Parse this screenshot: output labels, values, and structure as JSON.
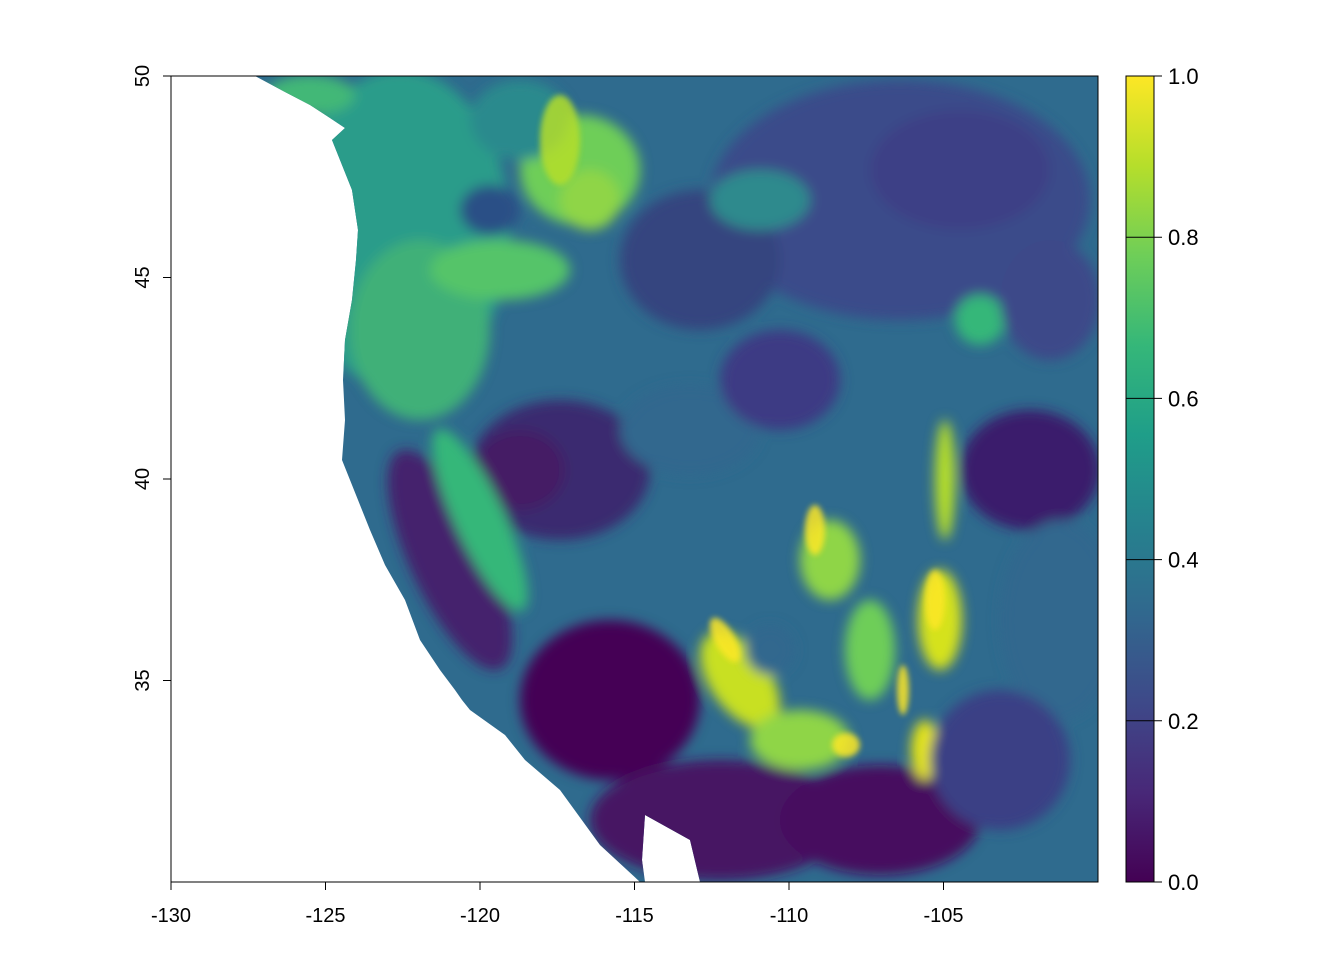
{
  "map": {
    "type": "raster",
    "x_range": [
      -130,
      -100
    ],
    "y_range": [
      30,
      50
    ],
    "x_ticks": [
      "-130",
      "-125",
      "-120",
      "-115",
      "-110",
      "-105"
    ],
    "x_tick_values": [
      -130,
      -125,
      -120,
      -115,
      -110,
      -105
    ],
    "y_ticks": [
      "50",
      "45",
      "40",
      "35"
    ],
    "y_tick_values": [
      50,
      45,
      40,
      35
    ],
    "legend": {
      "position": "right",
      "range": [
        0.0,
        1.0
      ],
      "ticks": [
        "1.0",
        "0.8",
        "0.6",
        "0.4",
        "0.2",
        "0.0"
      ],
      "tick_values": [
        1.0,
        0.8,
        0.6,
        0.4,
        0.2,
        0.0
      ],
      "colormap": "viridis",
      "colors": [
        "#440154",
        "#482878",
        "#3e4989",
        "#31688e",
        "#26828e",
        "#1f9e89",
        "#35b779",
        "#6ece58",
        "#b5de2b",
        "#fde725"
      ]
    },
    "no_data_color": "#ffffff"
  }
}
